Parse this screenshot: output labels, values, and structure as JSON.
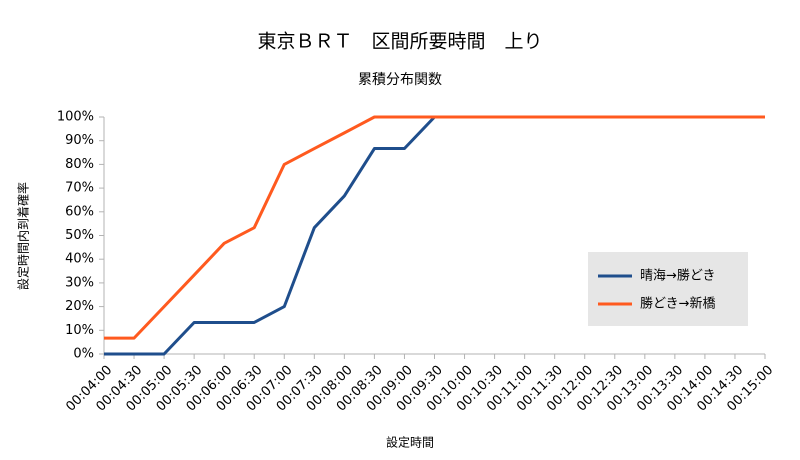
{
  "chart_data": {
    "type": "line",
    "title": "東京ＢＲＴ　区間所要時間　上り",
    "subtitle": "累積分布関数",
    "x_label": "設定時間",
    "y_label": "設定時間内到着確率",
    "categories": [
      "00:04:00",
      "00:04:30",
      "00:05:00",
      "00:05:30",
      "00:06:00",
      "00:06:30",
      "00:07:00",
      "00:07:30",
      "00:08:00",
      "00:08:30",
      "00:09:00",
      "00:09:30",
      "00:10:00",
      "00:10:30",
      "00:11:00",
      "00:11:30",
      "00:12:00",
      "00:12:30",
      "00:13:00",
      "00:13:30",
      "00:14:00",
      "00:14:30",
      "00:15:00"
    ],
    "series": [
      {
        "name": "晴海→勝どき",
        "color": "#1f4e8c",
        "values": [
          0,
          0,
          0,
          13.3,
          13.3,
          13.3,
          20,
          53.3,
          66.7,
          86.7,
          86.7,
          100,
          100,
          100,
          100,
          100,
          100,
          100,
          100,
          100,
          100,
          100,
          100
        ]
      },
      {
        "name": "勝どき→新橋",
        "color": "#ff5a1f",
        "values": [
          6.7,
          6.7,
          20,
          33.3,
          46.7,
          53.3,
          80,
          86.7,
          93.3,
          100,
          100,
          100,
          100,
          100,
          100,
          100,
          100,
          100,
          100,
          100,
          100,
          100,
          100
        ]
      }
    ],
    "ylim": [
      0,
      100
    ],
    "yticks": [
      {
        "value": 0,
        "label": "0%"
      },
      {
        "value": 10,
        "label": "10%"
      },
      {
        "value": 20,
        "label": "20%"
      },
      {
        "value": 30,
        "label": "30%"
      },
      {
        "value": 40,
        "label": "40%"
      },
      {
        "value": 50,
        "label": "50%"
      },
      {
        "value": 60,
        "label": "60%"
      },
      {
        "value": 70,
        "label": "70%"
      },
      {
        "value": 80,
        "label": "80%"
      },
      {
        "value": 90,
        "label": "90%"
      },
      {
        "value": 100,
        "label": "100%"
      }
    ],
    "grid": false,
    "legend": "right"
  }
}
